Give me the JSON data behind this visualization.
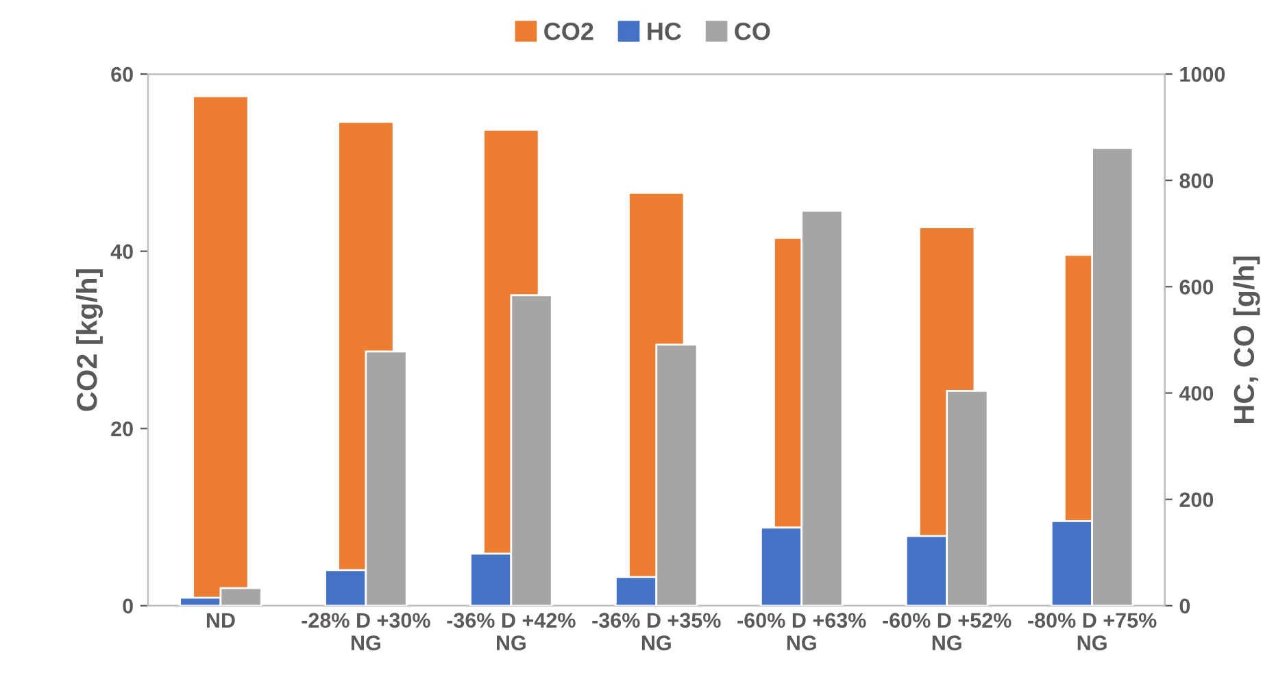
{
  "chart_data": {
    "type": "bar",
    "ylabel": "CO2 [kg/h]",
    "y2label": "HC, CO [g/h]",
    "categories": [
      "ND",
      "-28% D +30%\nNG",
      "-36% D +42%\nNG",
      "-36% D +35%\nNG",
      "-60% D +63%\nNG",
      "-60% D +52%\nNG",
      "-80% D +75%\nNG"
    ],
    "series": [
      {
        "name": "CO2",
        "color": "#ed7d31",
        "values": [
          57.5,
          54.6,
          53.7,
          46.6,
          41.5,
          42.7,
          39.6
        ]
      },
      {
        "name": "HC",
        "color": "#4472c4",
        "axis": "y2",
        "values": [
          15,
          67,
          98,
          54,
          147,
          131,
          159
        ]
      },
      {
        "name": "CO",
        "color": "#a5a5a5",
        "axis": "y2",
        "values": [
          33,
          478,
          584,
          491,
          743,
          404,
          861
        ]
      }
    ],
    "ylim": [
      0,
      60
    ],
    "yticks": [
      0,
      20,
      40,
      60
    ],
    "y2lim": [
      0,
      1000
    ],
    "y2ticks": [
      0,
      200,
      400,
      600,
      800,
      1000
    ],
    "grid": false,
    "legend": "top"
  }
}
